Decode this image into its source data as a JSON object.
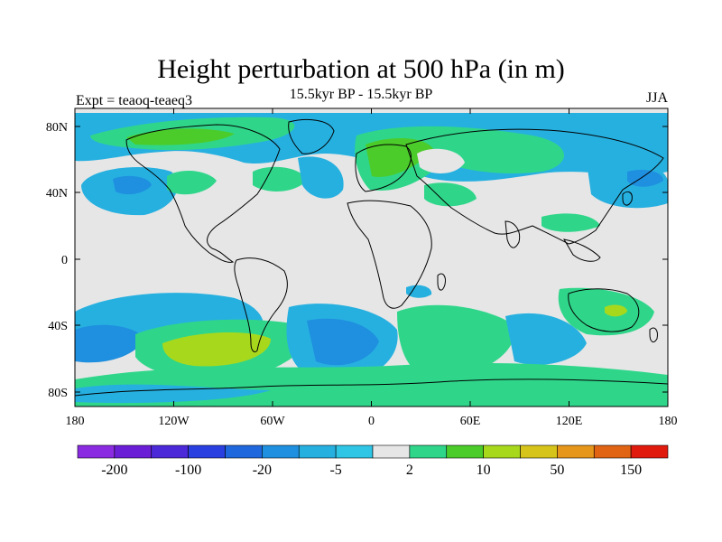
{
  "title": "Height perturbation at 500 hPa (in m)",
  "subtitle": "15.5kyr BP - 15.5kyr BP",
  "left_label": "Expt = teaoq-teaeq3",
  "right_label": "JJA",
  "lat_ticks": [
    "80N",
    "40N",
    "0",
    "40S",
    "80S"
  ],
  "lon_ticks": [
    "180",
    "120W",
    "60W",
    "0",
    "60E",
    "120E",
    "180"
  ],
  "colorbar": {
    "colors": [
      "#8a2be2",
      "#6a1fd6",
      "#4b28d8",
      "#2a3fe0",
      "#1f67dd",
      "#1f8fdf",
      "#26b0e0",
      "#2fc6e6",
      "#e6e6e6",
      "#2fd68a",
      "#4bcc2a",
      "#a8d81c",
      "#d6c41a",
      "#e6961a",
      "#e06414",
      "#e11a0e"
    ],
    "labels": [
      "-200",
      "-100",
      "-20",
      "-5",
      "2",
      "10",
      "50",
      "150"
    ]
  },
  "colors": {
    "land_fill": "#e6e6e6",
    "coast": "#000000"
  }
}
